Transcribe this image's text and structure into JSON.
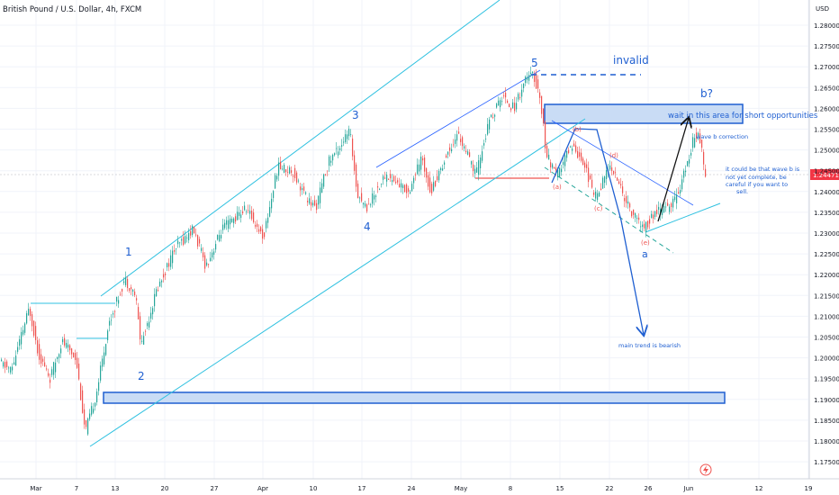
{
  "header": {
    "symbol_title": "British Pound / U.S. Dollar, 4h, FXCM"
  },
  "price_axis": {
    "currency": "USD",
    "ticks": [
      "1.28000",
      "1.27500",
      "1.27000",
      "1.26500",
      "1.26000",
      "1.25500",
      "1.25000",
      "1.24500",
      "1.24000",
      "1.23500",
      "1.23000",
      "1.22500",
      "1.22000",
      "1.21500",
      "1.21000",
      "1.20500",
      "1.20000",
      "1.19500",
      "1.19000",
      "1.18500",
      "1.18000",
      "1.17500"
    ],
    "current_price_label": "1.24471",
    "current_price_color": "#f23645"
  },
  "time_axis": {
    "ticks": [
      "Mar",
      "7",
      "13",
      "20",
      "27",
      "Apr",
      "10",
      "17",
      "24",
      "May",
      "8",
      "15",
      "22",
      "26",
      "Jun",
      "12",
      "19"
    ]
  },
  "colors": {
    "up": "#26a69a",
    "down": "#ef5350",
    "channel": "#2fc1e0",
    "annotation": "#1f5fd1",
    "zone_fill": "#c9dcf5"
  },
  "annotations": {
    "wave_1": "1",
    "wave_2": "2",
    "wave_3": "3",
    "wave_4": "4",
    "wave_5": "5",
    "invalid": "invalid",
    "b_question": "b?",
    "zone_text": "wait in this area for short opportunities",
    "wave_b_correction": "wave b correction",
    "note_line1": "it could be that wave b is",
    "note_line2": "not yet complete, be",
    "note_line3": "careful if you want to",
    "note_line4": "sell.",
    "sub_a": "(a)",
    "sub_b": "(b)",
    "sub_c": "(c)",
    "sub_d": "(d)",
    "sub_e": "(e)",
    "wave_a": "a",
    "main_trend": "main trend is bearish"
  },
  "chart_data": {
    "type": "candlestick",
    "title": "British Pound / U.S. Dollar, 4h, FXCM",
    "ylim": [
      1.175,
      1.2825
    ],
    "key_levels": {
      "invalidation": 1.2685,
      "current": 1.24471,
      "support_line": 1.2445
    },
    "zones": [
      {
        "name": "short zone",
        "from": 1.2565,
        "to": 1.2612
      },
      {
        "name": "demand zone",
        "from": 1.1912,
        "to": 1.1938
      }
    ],
    "swing_path": [
      [
        "1",
        1.2215
      ],
      [
        "2",
        1.2015
      ],
      [
        "3",
        1.2545
      ],
      [
        "4",
        1.2345
      ],
      [
        "5",
        1.2685
      ],
      [
        "(a)",
        1.2435
      ],
      [
        "(b)",
        1.2515
      ],
      [
        "(c)",
        1.2385
      ],
      [
        "(d)",
        1.2465
      ],
      [
        "(e)",
        1.231
      ],
      [
        "b?",
        1.2545
      ]
    ]
  }
}
